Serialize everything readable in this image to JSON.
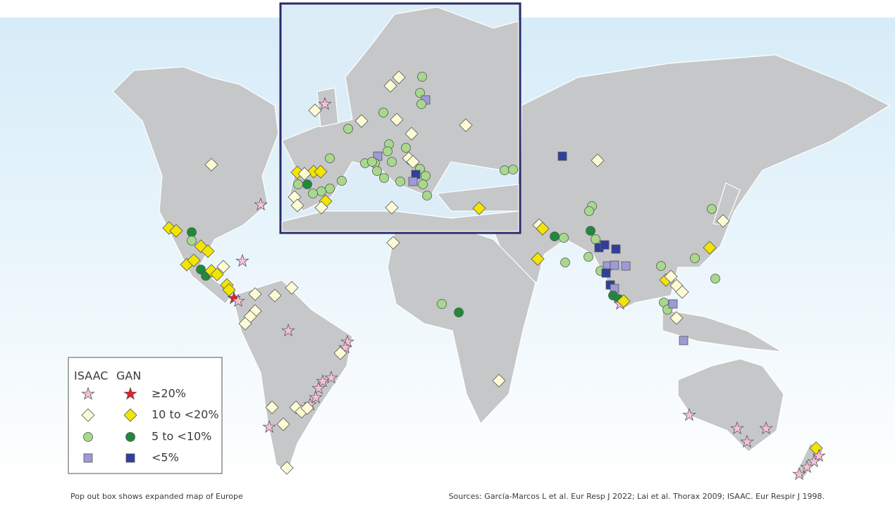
{
  "legend": {
    "headers": [
      "ISAAC",
      "GAN"
    ],
    "rows": [
      "≥20%",
      "10 to <20%",
      "5 to <10%",
      "<5%"
    ]
  },
  "notes": {
    "caption": "Pop out box shows expanded map of Europe",
    "sources": "Sources: García-Marcos L et al. Eur Resp J 2022; Lai et al. Thorax 2009; ISAAC. Eur Respir J 1998."
  }
}
